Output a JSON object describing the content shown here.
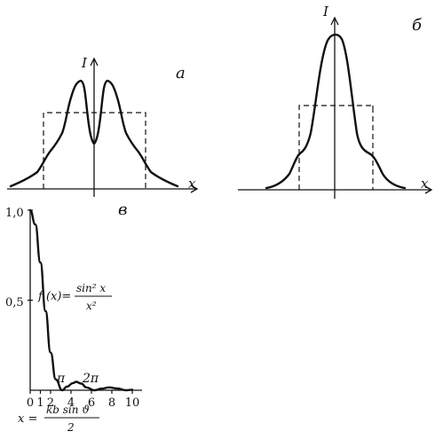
{
  "panels": {
    "a": {
      "panel_label": "а",
      "y_label": "I",
      "x_label": "x"
    },
    "b": {
      "panel_label": "б",
      "y_label": "I",
      "x_label": "x"
    },
    "c": {
      "panel_label": "в",
      "y_ticks": [
        "1,0",
        "0,5"
      ],
      "x_ticks": [
        "0",
        "1",
        "2",
        "4",
        "6",
        "8",
        "10"
      ],
      "marker_pi": "π",
      "marker_2pi": "2π",
      "formula": {
        "lhs": "f (x)=",
        "numerator": "sin² x",
        "denominator": "x²"
      },
      "x_definition": {
        "lhs": "x =",
        "numerator": "kb sin ϑ",
        "denominator": "2"
      }
    }
  },
  "chart_data": {
    "type": "line",
    "title": "",
    "xlabel": "x",
    "ylabel": "",
    "xlim": [
      0,
      11
    ],
    "ylim": [
      0,
      1.0
    ],
    "x_ticks": [
      0,
      1,
      2,
      4,
      6,
      8,
      10
    ],
    "y_ticks": [
      0.5,
      1.0
    ],
    "grid": false,
    "series": [
      {
        "x": [
          0,
          0.5,
          1.0,
          1.5,
          2.0,
          2.5,
          3.14,
          3.6,
          4.2,
          4.49,
          5.0,
          5.5,
          6.28,
          7.0,
          7.73,
          8.5,
          9.42,
          10.0
        ],
        "y": [
          1.0,
          0.92,
          0.71,
          0.44,
          0.21,
          0.06,
          0.0,
          0.02,
          0.04,
          0.047,
          0.037,
          0.016,
          0.0,
          0.009,
          0.016,
          0.01,
          0.0,
          0.003
        ]
      }
    ]
  }
}
